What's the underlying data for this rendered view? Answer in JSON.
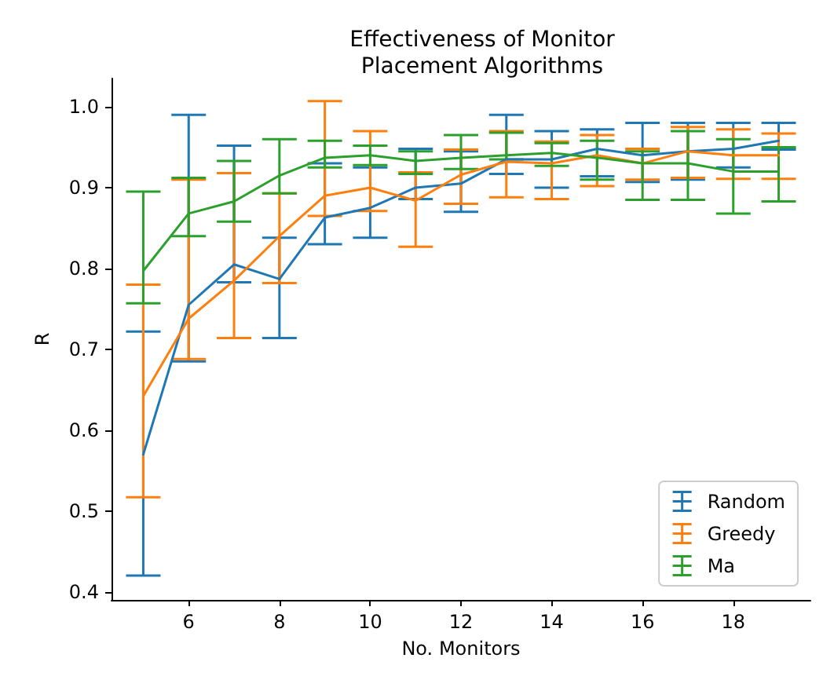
{
  "chart_data": {
    "type": "line",
    "title": "Effectiveness of Monitor\nPlacement Algorithms",
    "xlabel": "No. Monitors",
    "ylabel": "R",
    "x": [
      5,
      6,
      7,
      8,
      9,
      10,
      11,
      12,
      13,
      14,
      15,
      16,
      17,
      18,
      19
    ],
    "series": [
      {
        "name": "Random",
        "color": "#1f77b4",
        "values": [
          0.57,
          0.755,
          0.805,
          0.787,
          0.863,
          0.875,
          0.9,
          0.905,
          0.935,
          0.935,
          0.948,
          0.94,
          0.945,
          0.948,
          0.958
        ],
        "errors": [
          [
            0.42,
            0.722
          ],
          [
            0.685,
            0.99
          ],
          [
            0.783,
            0.952
          ],
          [
            0.714,
            0.838
          ],
          [
            0.83,
            0.93
          ],
          [
            0.838,
            0.925
          ],
          [
            0.886,
            0.948
          ],
          [
            0.87,
            0.945
          ],
          [
            0.917,
            0.99
          ],
          [
            0.9,
            0.97
          ],
          [
            0.914,
            0.972
          ],
          [
            0.907,
            0.98
          ],
          [
            0.91,
            0.98
          ],
          [
            0.925,
            0.98
          ],
          [
            0.947,
            0.98
          ]
        ]
      },
      {
        "name": "Greedy",
        "color": "#ff7f0e",
        "values": [
          0.642,
          0.738,
          0.785,
          0.84,
          0.89,
          0.9,
          0.884,
          0.916,
          0.932,
          0.93,
          0.94,
          0.93,
          0.945,
          0.94,
          0.94
        ],
        "errors": [
          [
            0.517,
            0.78
          ],
          [
            0.688,
            0.91
          ],
          [
            0.714,
            0.918
          ],
          [
            0.782,
            0.893
          ],
          [
            0.865,
            1.007
          ],
          [
            0.871,
            0.97
          ],
          [
            0.827,
            0.919
          ],
          [
            0.88,
            0.947
          ],
          [
            0.888,
            0.97
          ],
          [
            0.886,
            0.957
          ],
          [
            0.902,
            0.965
          ],
          [
            0.91,
            0.948
          ],
          [
            0.912,
            0.975
          ],
          [
            0.911,
            0.972
          ],
          [
            0.911,
            0.967
          ]
        ]
      },
      {
        "name": "Ma",
        "color": "#2ca02c",
        "values": [
          0.797,
          0.868,
          0.883,
          0.915,
          0.937,
          0.94,
          0.933,
          0.937,
          0.94,
          0.943,
          0.937,
          0.93,
          0.93,
          0.92,
          0.92
        ],
        "errors": [
          [
            0.757,
            0.895
          ],
          [
            0.84,
            0.912
          ],
          [
            0.858,
            0.933
          ],
          [
            0.893,
            0.96
          ],
          [
            0.925,
            0.958
          ],
          [
            0.928,
            0.952
          ],
          [
            0.917,
            0.945
          ],
          [
            0.923,
            0.965
          ],
          [
            0.935,
            0.968
          ],
          [
            0.927,
            0.955
          ],
          [
            0.91,
            0.958
          ],
          [
            0.885,
            0.945
          ],
          [
            0.885,
            0.97
          ],
          [
            0.868,
            0.96
          ],
          [
            0.883,
            0.95
          ]
        ]
      }
    ],
    "xlim": [
      4.3,
      19.7
    ],
    "xticks": [
      6,
      8,
      10,
      12,
      14,
      16,
      18
    ],
    "ylim": [
      0.39,
      1.035
    ],
    "yticks": [
      {
        "value": 0.4,
        "label": "0.4"
      },
      {
        "value": 0.5,
        "label": "0.5"
      },
      {
        "value": 0.6,
        "label": "0.6"
      },
      {
        "value": 0.7,
        "label": "0.7"
      },
      {
        "value": 0.8,
        "label": "0.8"
      },
      {
        "value": 0.9,
        "label": "0.9"
      },
      {
        "value": 1,
        "label": "1.0"
      }
    ],
    "grid": false,
    "legend": "bottom right",
    "marker": "none",
    "line_style": "solid"
  }
}
